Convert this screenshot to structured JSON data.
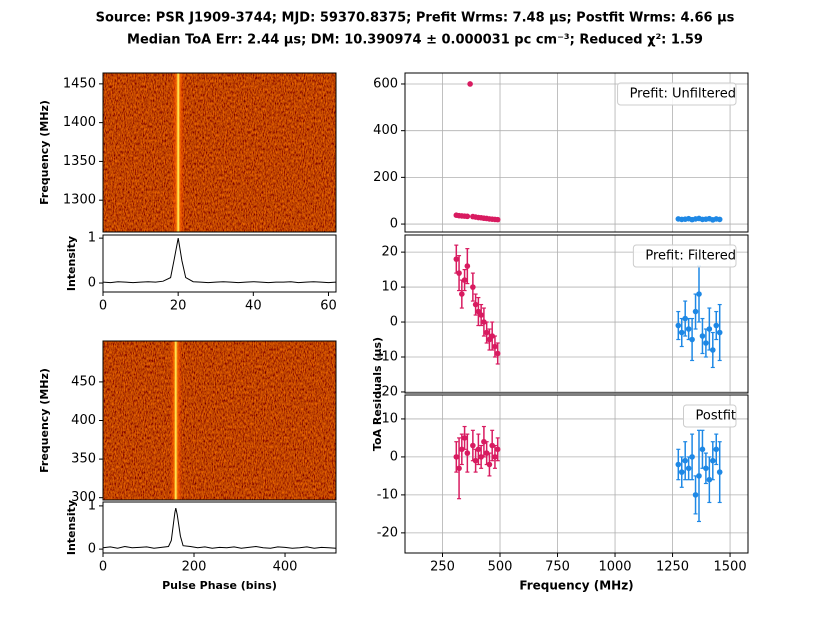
{
  "title": [
    "Source: PSR J1909-3744; MJD: 59370.8375; Prefit Wrms: 7.48 μs; Postfit Wrms: 4.66 μs",
    "Median ToA Err: 2.44 μs; DM: 10.390974 ± 0.000031 pc cm⁻³;  Reduced χ²: 1.59"
  ],
  "chart_data": [
    {
      "type": "image",
      "ylabel": "Frequency (MHz)",
      "ylim": [
        1259,
        1464
      ],
      "yticks": [
        1300,
        1350,
        1400,
        1450
      ]
    },
    {
      "type": "line",
      "ylabel": "Intensity",
      "color": "#000000",
      "x": [
        0,
        2,
        4,
        6,
        8,
        10,
        12,
        14,
        16,
        18,
        19,
        20,
        21,
        22,
        24,
        26,
        28,
        30,
        32,
        34,
        36,
        38,
        40,
        42,
        44,
        46,
        48,
        50,
        52,
        54,
        56,
        58,
        60,
        62
      ],
      "values": [
        0.02,
        0.01,
        0.03,
        0.02,
        0.01,
        0.02,
        0.03,
        0.02,
        0.04,
        0.12,
        0.55,
        1,
        0.5,
        0.12,
        0.03,
        0.02,
        0.01,
        0.02,
        0.03,
        0.02,
        0.01,
        0.02,
        0.03,
        0.02,
        0.01,
        0.02,
        0.02,
        0.03,
        0.01,
        0.02,
        0.03,
        0.02,
        0.01,
        0.02
      ],
      "xlim": [
        0,
        62
      ],
      "xticks": [
        0,
        20,
        40,
        60
      ],
      "ylim": [
        -0.2,
        1.07
      ],
      "yticks": [
        0,
        1
      ]
    },
    {
      "type": "image",
      "ylabel": "Frequency (MHz)",
      "ylim": [
        297,
        503
      ],
      "yticks": [
        300,
        350,
        400,
        450
      ]
    },
    {
      "type": "line",
      "ylabel": "Intensity",
      "xlabel": "Pulse Phase (bins)",
      "color": "#000000",
      "x": [
        0,
        16,
        32,
        48,
        64,
        80,
        96,
        112,
        128,
        144,
        150,
        155,
        158,
        160,
        163,
        166,
        170,
        176,
        192,
        208,
        224,
        240,
        256,
        272,
        288,
        304,
        320,
        336,
        352,
        368,
        384,
        400,
        416,
        432,
        448,
        464,
        480,
        496,
        512
      ],
      "values": [
        0.03,
        0.05,
        0.02,
        0.06,
        0.03,
        0.04,
        0.05,
        0.02,
        0.04,
        0.06,
        0.2,
        0.6,
        0.85,
        0.95,
        0.8,
        0.6,
        0.3,
        0.08,
        0.06,
        0.03,
        0.05,
        0.02,
        0.04,
        0.03,
        0.05,
        0.02,
        0.04,
        0.06,
        0.03,
        0.02,
        0.05,
        0.04,
        0.02,
        0.03,
        0.05,
        0.02,
        0.04,
        0.03,
        0.02
      ],
      "xlim": [
        0,
        512
      ],
      "xticks": [
        0,
        200,
        400
      ],
      "ylim": [
        -0.09,
        1.09
      ],
      "yticks": [
        0,
        1
      ]
    },
    {
      "type": "errorbar",
      "legend": "Prefit: Unfiltered",
      "grid": true,
      "xlim": [
        87,
        1578
      ],
      "ylim": [
        -34,
        647
      ],
      "yticks": [
        0,
        200,
        400,
        600
      ],
      "series": [
        {
          "color": "#d81b60",
          "x": [
            310,
            322,
            334,
            346,
            358,
            370,
            382,
            394,
            406,
            418,
            430,
            442,
            454,
            466,
            478,
            490
          ],
          "values": [
            38,
            36,
            35,
            34,
            33,
            600,
            32,
            30,
            28,
            27,
            25,
            24,
            22,
            21,
            20,
            19
          ]
        },
        {
          "color": "#1e88e5",
          "x": [
            1275,
            1290,
            1305,
            1320,
            1335,
            1350,
            1365,
            1380,
            1395,
            1410,
            1425,
            1440,
            1455
          ],
          "values": [
            22,
            20,
            21,
            23,
            19,
            22,
            24,
            20,
            21,
            23,
            18,
            22,
            20
          ]
        }
      ]
    },
    {
      "type": "errorbar",
      "legend": "Prefit: Filtered",
      "ylabel": "ToA Residuals (μs)",
      "grid": true,
      "xlim": [
        87,
        1578
      ],
      "ylim": [
        -20.3,
        24.9
      ],
      "yticks": [
        -20,
        -10,
        0,
        10,
        20
      ],
      "series": [
        {
          "color": "#d81b60",
          "x": [
            310,
            322,
            334,
            346,
            358,
            382,
            394,
            406,
            418,
            430,
            442,
            454,
            466,
            478,
            490
          ],
          "values": [
            18,
            14,
            8,
            12,
            16,
            10,
            5,
            3,
            2,
            0,
            -3,
            -5,
            -4,
            -7,
            -9
          ],
          "errors": [
            4,
            5,
            4,
            3,
            5,
            4,
            3,
            4,
            3,
            4,
            3,
            3,
            4,
            3,
            3
          ]
        },
        {
          "color": "#1e88e5",
          "x": [
            1275,
            1290,
            1305,
            1320,
            1335,
            1350,
            1365,
            1380,
            1395,
            1410,
            1425,
            1440,
            1455
          ],
          "values": [
            -1,
            -3,
            1,
            -2,
            -5,
            3,
            8,
            -4,
            -6,
            -2,
            -8,
            -1,
            -3
          ],
          "errors": [
            4,
            4,
            5,
            3,
            6,
            5,
            8,
            5,
            4,
            6,
            5,
            4,
            8
          ]
        }
      ]
    },
    {
      "type": "errorbar",
      "legend": "Postfit",
      "xlabel": "Frequency (MHz)",
      "grid": true,
      "xlim": [
        87,
        1578
      ],
      "xticks": [
        250,
        500,
        750,
        1000,
        1250,
        1500
      ],
      "ylim": [
        -25.3,
        16.3
      ],
      "yticks": [
        -20,
        -10,
        0,
        10
      ],
      "series": [
        {
          "color": "#d81b60",
          "x": [
            310,
            322,
            334,
            346,
            358,
            382,
            394,
            406,
            418,
            430,
            442,
            454,
            466,
            478,
            490
          ],
          "values": [
            0,
            -3,
            2,
            5,
            1,
            3,
            -1,
            2,
            0,
            4,
            1,
            -2,
            3,
            0,
            2
          ],
          "errors": [
            4,
            8,
            4,
            3,
            5,
            4,
            3,
            4,
            3,
            4,
            3,
            3,
            4,
            3,
            3
          ]
        },
        {
          "color": "#1e88e5",
          "x": [
            1275,
            1290,
            1305,
            1320,
            1335,
            1350,
            1365,
            1380,
            1395,
            1410,
            1425,
            1440,
            1455
          ],
          "values": [
            -2,
            -4,
            -1,
            -3,
            0,
            -10,
            -5,
            2,
            -3,
            -6,
            -1,
            2,
            -4
          ],
          "errors": [
            4,
            4,
            5,
            3,
            6,
            5,
            12,
            5,
            4,
            6,
            5,
            4,
            8
          ]
        }
      ]
    }
  ]
}
